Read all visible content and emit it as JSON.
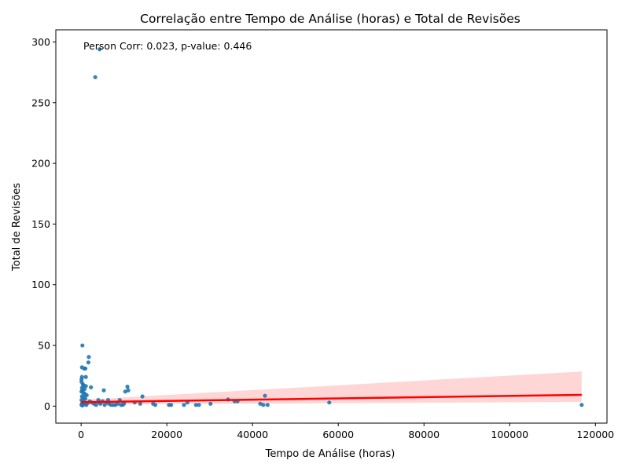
{
  "chart_data": {
    "type": "scatter",
    "title": "Correlação entre Tempo de Análise (horas) e Total de Revisões",
    "xlabel": "Tempo de Análise (horas)",
    "ylabel": "Total de Revisões",
    "xlim": [
      -5900,
      122700
    ],
    "ylim": [
      -14,
      310
    ],
    "xticks": [
      0,
      20000,
      40000,
      60000,
      80000,
      100000,
      120000
    ],
    "yticks": [
      0,
      50,
      100,
      150,
      200,
      250,
      300
    ],
    "annotation": "Person Corr: 0.023, p-value: 0.446",
    "grid": false,
    "colors": {
      "points": "#1f77b4",
      "regression_line": "#ff0000",
      "confidence_band": "#ffcccc"
    },
    "regression": {
      "x": [
        0,
        116800
      ],
      "y": [
        3.2,
        9.3
      ]
    },
    "confidence_band": {
      "x": [
        0,
        116800
      ],
      "upper": [
        5.2,
        28.5
      ],
      "lower": [
        1.2,
        3.5
      ]
    },
    "points": [
      [
        300,
        50
      ],
      [
        200,
        32
      ],
      [
        700,
        31
      ],
      [
        1000,
        31
      ],
      [
        1800,
        40.5
      ],
      [
        1700,
        36
      ],
      [
        2300,
        15.5
      ],
      [
        1100,
        24
      ],
      [
        200,
        24
      ],
      [
        100,
        22
      ],
      [
        100,
        20
      ],
      [
        400,
        18
      ],
      [
        600,
        17
      ],
      [
        1100,
        16.5
      ],
      [
        200,
        15
      ],
      [
        800,
        14
      ],
      [
        300,
        13
      ],
      [
        100,
        12
      ],
      [
        500,
        11
      ],
      [
        900,
        10
      ],
      [
        1300,
        9
      ],
      [
        200,
        8
      ],
      [
        600,
        7
      ],
      [
        1000,
        6
      ],
      [
        100,
        5
      ],
      [
        400,
        4
      ],
      [
        800,
        3
      ],
      [
        1500,
        2.5
      ],
      [
        200,
        2
      ],
      [
        600,
        1.5
      ],
      [
        1200,
        1
      ],
      [
        100,
        1
      ],
      [
        300,
        0.5
      ],
      [
        2000,
        4
      ],
      [
        2500,
        3
      ],
      [
        3000,
        2
      ],
      [
        3500,
        1
      ],
      [
        4000,
        5
      ],
      [
        4200,
        3
      ],
      [
        4500,
        2
      ],
      [
        5000,
        4
      ],
      [
        5300,
        13
      ],
      [
        5500,
        1
      ],
      [
        6000,
        3
      ],
      [
        6300,
        5
      ],
      [
        6500,
        2
      ],
      [
        7000,
        1
      ],
      [
        7500,
        1
      ],
      [
        8000,
        1
      ],
      [
        8500,
        2
      ],
      [
        9000,
        5
      ],
      [
        9300,
        1
      ],
      [
        9700,
        1
      ],
      [
        10000,
        2
      ],
      [
        10300,
        12
      ],
      [
        10800,
        16
      ],
      [
        11000,
        13
      ],
      [
        12500,
        3
      ],
      [
        13800,
        2
      ],
      [
        14300,
        8
      ],
      [
        16800,
        2
      ],
      [
        17300,
        1
      ],
      [
        20500,
        1
      ],
      [
        21000,
        1
      ],
      [
        24000,
        1
      ],
      [
        24800,
        3
      ],
      [
        26800,
        1
      ],
      [
        27500,
        1
      ],
      [
        30200,
        2
      ],
      [
        34300,
        5.5
      ],
      [
        35800,
        4
      ],
      [
        36500,
        4
      ],
      [
        41800,
        2
      ],
      [
        42500,
        1
      ],
      [
        42900,
        8.5
      ],
      [
        43500,
        1
      ],
      [
        57900,
        3
      ],
      [
        116800,
        1
      ],
      [
        3300,
        271
      ],
      [
        4300,
        294
      ]
    ]
  }
}
